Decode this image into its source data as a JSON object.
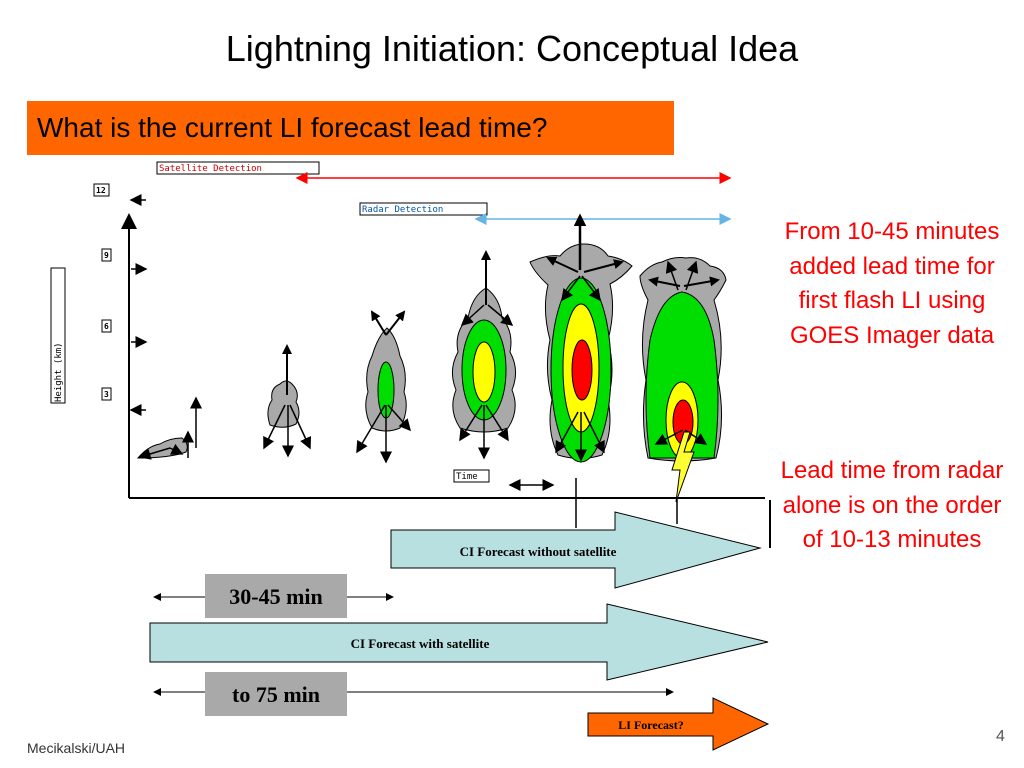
{
  "slide": {
    "title": "Lightning Initiation: Conceptual Idea",
    "question": "What is the current LI forecast lead time?",
    "side_text_1": "From 10-45 minutes added lead time for first flash LI using GOES Imager data",
    "side_text_2": "Lead time from radar alone is on the order of 10-13 minutes",
    "footer": "Mecikalski/UAH",
    "page_number": "4"
  },
  "diagram": {
    "satellite_label": "Satellite Detection",
    "radar_label": "Radar Detection",
    "y_axis_label": "Height (km)",
    "y_ticks": [
      "12",
      "9",
      "6",
      "3"
    ],
    "time_label": "Time",
    "ci_without_label": "CI Forecast without satellite",
    "ci_with_label": "CI Forecast with satellite",
    "li_forecast_label": "LI Forecast?",
    "lead_30_45": "30-45 min",
    "lead_75": "to 75 min",
    "colors": {
      "satellite_arrow": "#ff0000",
      "radar_arrow": "#66b3e6",
      "forecast_arrow_fill": "#b8e0e0",
      "li_arrow_fill": "#ff6600",
      "cloud_gray": "#a9a9a9",
      "core_green": "#00dd00",
      "core_yellow": "#ffff00",
      "core_red": "#ff0000",
      "lightning": "#ffff33"
    }
  }
}
